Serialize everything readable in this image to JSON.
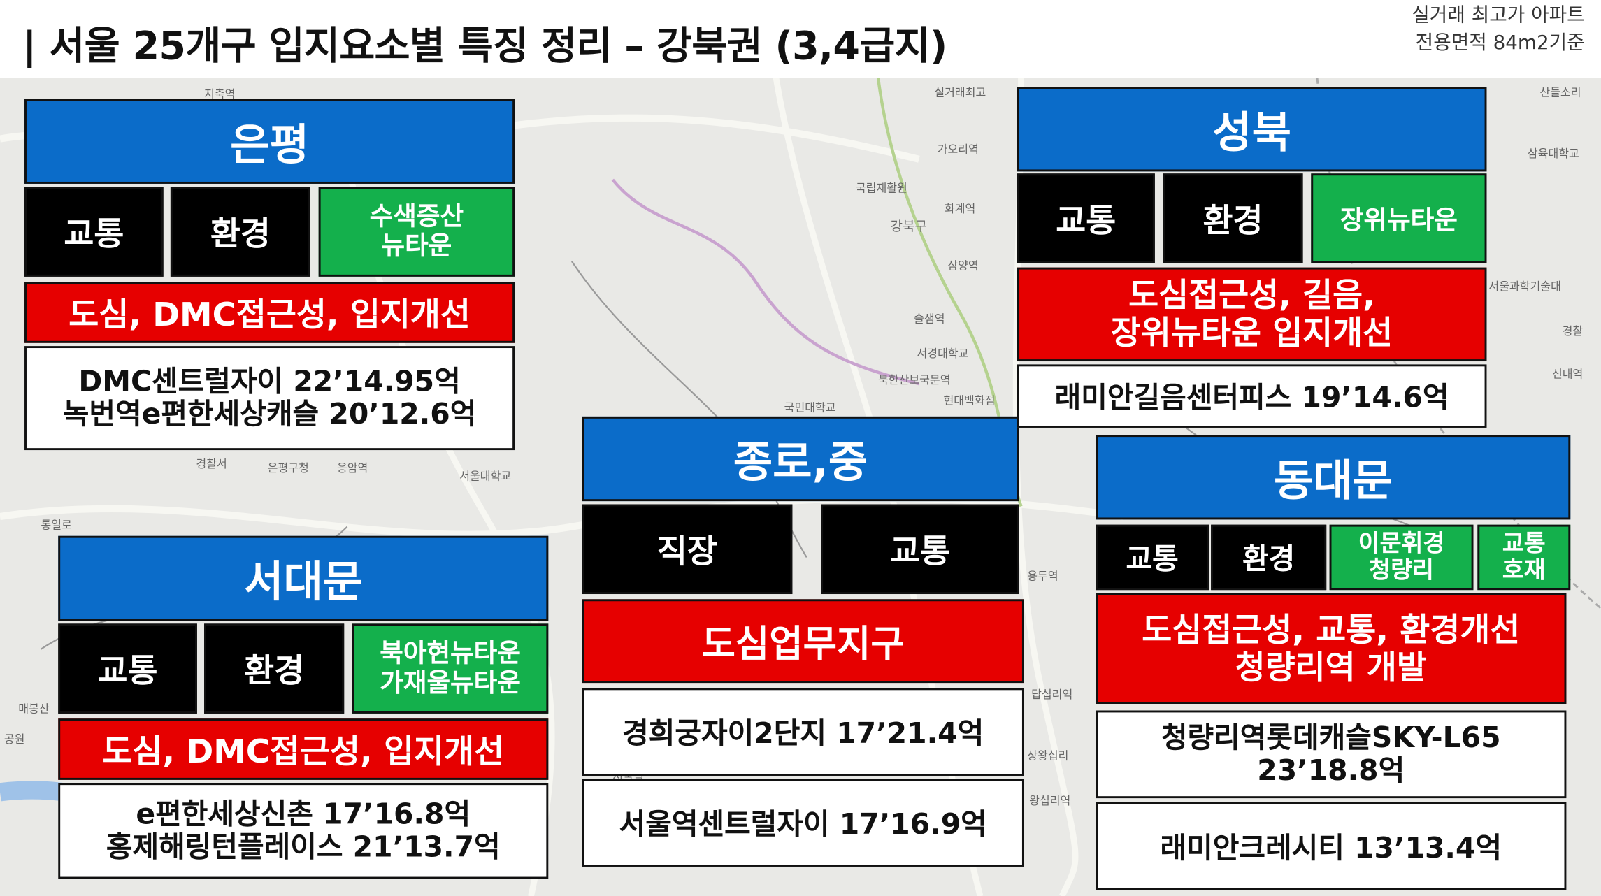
{
  "title": "|  서울 25개구 입지요소별 특징 정리 – 강북권 (3,4급지)",
  "note": {
    "line1": "실거래 최고가 아파트",
    "line2": "전용면적 84m2기준"
  },
  "watermark": "",
  "map_labels": [
    "지축역",
    "실거래최고",
    "가오리역",
    "국립재활원",
    "화계역",
    "강북구",
    "삼양역",
    "솔샘역",
    "서경대학교",
    "북한산보국문역",
    "국민대학교",
    "현대백화점",
    "응암역",
    "은평구청",
    "서울대학교",
    "경찰서",
    "통일로",
    "산들소리",
    "삼육대학교",
    "서울과학기술대",
    "경찰",
    "신내역",
    "매봉산",
    "공원",
    "상왕십리",
    "왕십리역",
    "답십리역",
    "용두역",
    "서울역"
  ],
  "eunpyeong": {
    "header": "은평",
    "tag1": "교통",
    "tag2": "환경",
    "tag3": "수색증산\n뉴타운",
    "desc": "도심, DMC접근성, 입지개선",
    "apt1": "DMC센트럴자이 22’14.95억",
    "apt2": "녹번역e편한세상캐슬 20’12.6억"
  },
  "seodaemun": {
    "header": "서대문",
    "tag1": "교통",
    "tag2": "환경",
    "tag3": "북아현뉴타운\n가재울뉴타운",
    "desc": "도심, DMC접근성, 입지개선",
    "apt1": "e편한세상신촌  17’16.8억",
    "apt2": "홍제해링턴플레이스 21’13.7억"
  },
  "jongno": {
    "header": "종로,중",
    "tag1": "직장",
    "tag2": "교통",
    "desc": "도심업무지구",
    "apt1": "경희궁자이2단지  17’21.4억",
    "apt2": "서울역센트럴자이  17’16.9억"
  },
  "seongbuk": {
    "header": "성북",
    "tag1": "교통",
    "tag2": "환경",
    "tag3": "장위뉴타운",
    "desc": "도심접근성, 길음,\n장위뉴타운 입지개선",
    "apt1": "래미안길음센터피스 19’14.6억"
  },
  "dongdaemun": {
    "header": "동대문",
    "tag1": "교통",
    "tag2": "환경",
    "tag3": "이문휘경\n청량리",
    "tag4": "교통\n호재",
    "desc": "도심접근성, 교통, 환경개선\n청량리역 개발",
    "apt1": "청량리역롯데캐슬SKY-L65\n23’18.8억",
    "apt2": "래미안크레시티   13’13.4억"
  },
  "colors": {
    "blue": "#0b6cc9",
    "black": "#000000",
    "green": "#14b04c",
    "red": "#e60000",
    "map": "#e9e9e6"
  }
}
